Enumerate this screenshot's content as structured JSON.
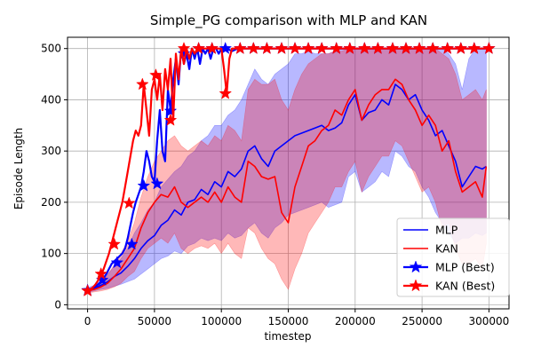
{
  "chart_data": {
    "type": "line",
    "title": "Simple_PG comparison with MLP and KAN",
    "xlabel": "timestep",
    "ylabel": "Episode Length",
    "xlim": [
      -15000,
      315000
    ],
    "ylim": [
      -8,
      522
    ],
    "x_ticks": [
      0,
      50000,
      100000,
      150000,
      200000,
      250000,
      300000
    ],
    "x_tick_labels": [
      "0",
      "50000",
      "100000",
      "150000",
      "200000",
      "250000",
      "300000"
    ],
    "y_ticks": [
      0,
      100,
      200,
      300,
      400,
      500
    ],
    "y_tick_labels": [
      "0",
      "100",
      "200",
      "300",
      "400",
      "500"
    ],
    "grid": true,
    "legend_position": "lower-right",
    "colors": {
      "mlp": "#0000ff",
      "kan": "#ff0000"
    },
    "series": [
      {
        "name": "MLP",
        "key": "mlp",
        "style": "line",
        "x": [
          0,
          5000,
          10000,
          15000,
          20000,
          25000,
          30000,
          35000,
          40000,
          45000,
          50000,
          55000,
          60000,
          65000,
          70000,
          75000,
          80000,
          85000,
          90000,
          95000,
          100000,
          105000,
          110000,
          115000,
          120000,
          125000,
          130000,
          135000,
          140000,
          145000,
          150000,
          155000,
          160000,
          165000,
          170000,
          175000,
          180000,
          185000,
          190000,
          195000,
          200000,
          205000,
          210000,
          215000,
          220000,
          225000,
          230000,
          235000,
          240000,
          245000,
          250000,
          255000,
          260000,
          265000,
          270000,
          275000,
          280000,
          285000,
          290000,
          295000,
          298000
        ],
        "values": [
          28,
          32,
          38,
          45,
          55,
          62,
          75,
          90,
          110,
          125,
          135,
          155,
          165,
          185,
          175,
          200,
          205,
          225,
          215,
          240,
          230,
          260,
          250,
          265,
          300,
          310,
          285,
          270,
          300,
          310,
          320,
          330,
          335,
          340,
          345,
          350,
          340,
          345,
          355,
          390,
          410,
          360,
          375,
          380,
          400,
          390,
          430,
          420,
          400,
          410,
          380,
          360,
          330,
          340,
          310,
          280,
          230,
          250,
          270,
          265,
          270
        ],
        "upper": [
          33,
          38,
          47,
          60,
          75,
          90,
          110,
          140,
          160,
          185,
          200,
          230,
          245,
          260,
          270,
          290,
          300,
          320,
          330,
          350,
          350,
          370,
          380,
          400,
          430,
          460,
          440,
          430,
          450,
          460,
          470,
          490,
          490,
          495,
          490,
          490,
          490,
          495,
          500,
          500,
          500,
          500,
          500,
          500,
          500,
          500,
          500,
          500,
          500,
          500,
          500,
          500,
          500,
          500,
          490,
          470,
          420,
          480,
          500,
          500,
          500
        ],
        "lower": [
          24,
          27,
          30,
          32,
          36,
          40,
          45,
          50,
          60,
          70,
          80,
          90,
          95,
          105,
          100,
          115,
          120,
          130,
          125,
          130,
          125,
          140,
          130,
          135,
          150,
          160,
          140,
          130,
          150,
          160,
          175,
          180,
          185,
          190,
          195,
          200,
          190,
          195,
          200,
          250,
          260,
          220,
          230,
          240,
          260,
          250,
          300,
          290,
          270,
          260,
          230,
          210,
          180,
          160,
          140,
          120,
          130,
          130,
          140,
          135,
          140
        ]
      },
      {
        "name": "KAN",
        "key": "kan",
        "style": "line",
        "x": [
          0,
          5000,
          10000,
          15000,
          20000,
          25000,
          30000,
          35000,
          40000,
          45000,
          50000,
          55000,
          60000,
          65000,
          70000,
          75000,
          80000,
          85000,
          90000,
          95000,
          100000,
          105000,
          110000,
          115000,
          120000,
          125000,
          130000,
          135000,
          140000,
          145000,
          150000,
          155000,
          160000,
          165000,
          170000,
          175000,
          180000,
          185000,
          190000,
          195000,
          200000,
          205000,
          210000,
          215000,
          220000,
          225000,
          230000,
          235000,
          240000,
          245000,
          250000,
          255000,
          260000,
          265000,
          270000,
          275000,
          280000,
          285000,
          290000,
          295000,
          298000
        ],
        "values": [
          27,
          30,
          35,
          42,
          55,
          70,
          90,
          110,
          150,
          180,
          200,
          215,
          210,
          230,
          200,
          190,
          200,
          210,
          200,
          220,
          200,
          230,
          210,
          200,
          280,
          270,
          250,
          245,
          250,
          180,
          160,
          230,
          270,
          310,
          320,
          340,
          350,
          380,
          370,
          400,
          420,
          360,
          390,
          410,
          420,
          420,
          440,
          430,
          400,
          380,
          350,
          370,
          350,
          300,
          320,
          260,
          220,
          230,
          240,
          210,
          270
        ],
        "upper": [
          31,
          36,
          45,
          58,
          78,
          100,
          125,
          160,
          210,
          250,
          280,
          300,
          320,
          330,
          310,
          300,
          310,
          320,
          310,
          330,
          320,
          350,
          340,
          320,
          420,
          440,
          430,
          430,
          440,
          400,
          380,
          420,
          450,
          470,
          480,
          490,
          490,
          495,
          495,
          500,
          500,
          500,
          500,
          500,
          500,
          500,
          500,
          500,
          500,
          500,
          500,
          500,
          500,
          490,
          480,
          450,
          400,
          410,
          420,
          400,
          420
        ],
        "lower": [
          23,
          25,
          27,
          30,
          35,
          42,
          55,
          65,
          90,
          110,
          120,
          130,
          120,
          140,
          110,
          100,
          110,
          115,
          110,
          120,
          100,
          120,
          100,
          90,
          150,
          140,
          110,
          90,
          80,
          50,
          30,
          70,
          100,
          140,
          160,
          180,
          200,
          230,
          230,
          260,
          280,
          220,
          250,
          270,
          290,
          290,
          320,
          310,
          280,
          250,
          220,
          230,
          200,
          150,
          160,
          110,
          80,
          80,
          90,
          70,
          120
        ]
      },
      {
        "name": "MLP (Best)",
        "key": "mlp",
        "style": "best",
        "x": [
          0,
          2000,
          4000,
          6000,
          8000,
          10000,
          12000,
          14000,
          16000,
          18000,
          20000,
          22000,
          24000,
          26000,
          28000,
          30000,
          32000,
          34000,
          36000,
          38000,
          40000,
          42000,
          44000,
          46000,
          48000,
          50000,
          52000,
          54000,
          56000,
          58000,
          60000,
          62000,
          64000,
          66000,
          68000,
          70000,
          72000,
          74000,
          76000,
          78000,
          80000,
          82000,
          84000,
          86000,
          88000,
          90000,
          92000,
          94000,
          96000,
          98000,
          100000,
          104000,
          108000,
          112000,
          116000,
          120000,
          130000,
          140000,
          150000,
          160000,
          170000,
          180000,
          190000,
          200000,
          210000,
          220000,
          230000,
          240000,
          250000,
          260000,
          270000,
          280000,
          290000,
          300000
        ],
        "values": [
          28,
          30,
          33,
          36,
          40,
          45,
          52,
          60,
          70,
          80,
          85,
          90,
          95,
          100,
          110,
          130,
          155,
          180,
          200,
          215,
          230,
          260,
          300,
          280,
          250,
          240,
          320,
          380,
          300,
          280,
          420,
          380,
          440,
          480,
          430,
          500,
          470,
          490,
          460,
          500,
          480,
          500,
          470,
          500,
          490,
          500,
          480,
          500,
          500,
          490,
          500,
          500,
          495,
          500,
          500,
          500,
          500,
          500,
          500,
          500,
          500,
          500,
          500,
          500,
          500,
          500,
          500,
          500,
          500,
          500,
          500,
          500,
          500,
          500
        ],
        "markers_x": [
          0,
          11000,
          22000,
          33000,
          42000,
          52000,
          62000,
          72000,
          83000,
          93000,
          103000,
          114000,
          124000,
          134000,
          145000,
          155000,
          165000,
          175000,
          186000,
          196000,
          207000,
          217000,
          228000,
          238000,
          248000,
          258000,
          269000,
          279000,
          289000,
          300000
        ],
        "markers_y": [
          28,
          48,
          82,
          118,
          232,
          236,
          378,
          490,
          500,
          500,
          500,
          500,
          500,
          500,
          500,
          500,
          500,
          500,
          500,
          500,
          500,
          500,
          500,
          500,
          500,
          500,
          500,
          500,
          500,
          500
        ]
      },
      {
        "name": "KAN (Best)",
        "key": "kan",
        "style": "best",
        "x": [
          0,
          2000,
          4000,
          6000,
          8000,
          10000,
          12000,
          14000,
          16000,
          18000,
          20000,
          22000,
          24000,
          26000,
          28000,
          30000,
          32000,
          34000,
          36000,
          38000,
          40000,
          42000,
          44000,
          46000,
          48000,
          50000,
          52000,
          54000,
          56000,
          58000,
          60000,
          62000,
          64000,
          66000,
          68000,
          70000,
          72000,
          74000,
          76000,
          78000,
          80000,
          82000,
          84000,
          86000,
          88000,
          90000,
          92000,
          94000,
          96000,
          98000,
          100000,
          102000,
          104000,
          106000,
          108000,
          112000,
          116000,
          120000,
          130000,
          140000,
          150000,
          160000,
          170000,
          180000,
          190000,
          200000,
          210000,
          220000,
          230000,
          240000,
          250000,
          260000,
          270000,
          280000,
          290000,
          300000
        ],
        "values": [
          27,
          30,
          34,
          40,
          48,
          58,
          70,
          85,
          100,
          120,
          140,
          160,
          180,
          200,
          230,
          260,
          290,
          320,
          340,
          330,
          350,
          430,
          380,
          330,
          420,
          440,
          400,
          450,
          380,
          460,
          420,
          480,
          360,
          490,
          440,
          500,
          470,
          500,
          480,
          500,
          490,
          500,
          500,
          500,
          500,
          500,
          500,
          500,
          500,
          500,
          500,
          460,
          412,
          480,
          500,
          500,
          500,
          500,
          500,
          500,
          500,
          500,
          500,
          500,
          500,
          500,
          500,
          500,
          500,
          500,
          500,
          500,
          500,
          500,
          500,
          500
        ],
        "markers_x": [
          0,
          10000,
          20000,
          31000,
          41000,
          51000,
          62000,
          72000,
          83000,
          93000,
          103000,
          114000,
          124000,
          134000,
          145000,
          155000,
          165000,
          175000,
          186000,
          196000,
          207000,
          217000,
          228000,
          238000,
          248000,
          258000,
          269000,
          279000,
          289000,
          300000
        ],
        "markers_y": [
          27,
          60,
          118,
          198,
          430,
          448,
          360,
          500,
          500,
          500,
          412,
          500,
          500,
          500,
          500,
          500,
          500,
          500,
          500,
          500,
          500,
          500,
          500,
          500,
          500,
          500,
          500,
          500,
          500,
          500
        ]
      }
    ]
  }
}
